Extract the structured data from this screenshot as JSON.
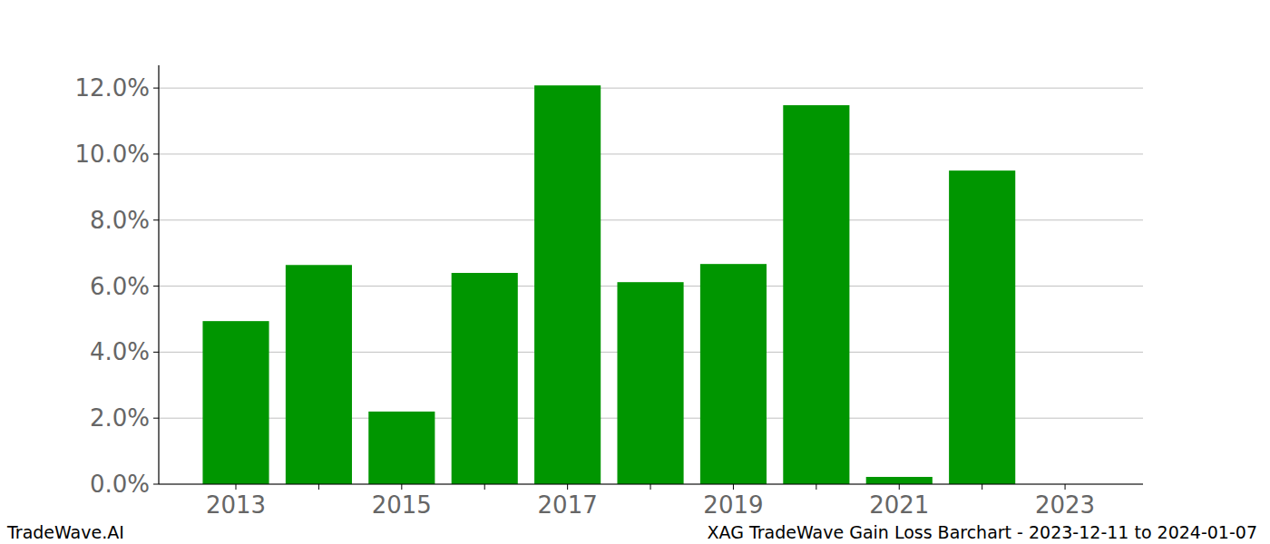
{
  "chart_data": {
    "type": "bar",
    "title": "XAG TradeWave Gain Loss Barchart - 2023-12-11 to 2024-01-07",
    "annotations": [
      "TradeWave.AI"
    ],
    "categories": [
      "2013",
      null,
      "2015",
      null,
      "2017",
      null,
      "2019",
      null,
      "2021",
      null,
      "2023"
    ],
    "values": [
      4.94,
      6.64,
      2.2,
      6.4,
      12.08,
      6.12,
      6.67,
      11.48,
      0.22,
      9.5,
      0
    ],
    "color": "#009600",
    "ylim": [
      0,
      12.69
    ],
    "yticks": [
      {
        "value": 0,
        "label": "0.0%"
      },
      {
        "value": 2,
        "label": "2.0%"
      },
      {
        "value": 4,
        "label": "4.0%"
      },
      {
        "value": 6,
        "label": "6.0%"
      },
      {
        "value": 8,
        "label": "8.0%"
      },
      {
        "value": 10,
        "label": "10.0%"
      },
      {
        "value": 12,
        "label": "12.0%"
      }
    ],
    "grid": true
  }
}
